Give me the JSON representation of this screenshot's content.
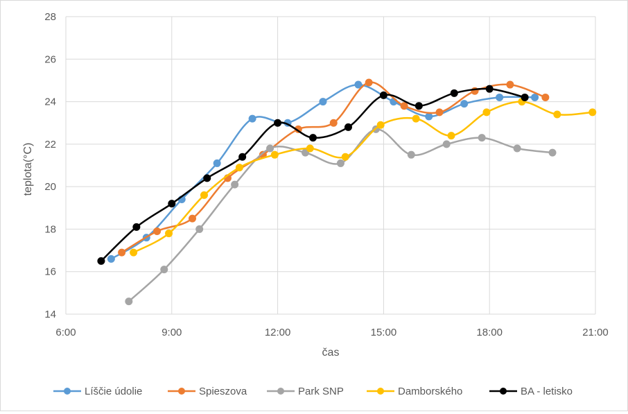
{
  "chart_data": {
    "type": "line",
    "title": "",
    "xlabel": "čas",
    "ylabel": "teplota(°C)",
    "xlim": [
      "6:00",
      "21:00"
    ],
    "ylim": [
      14,
      28
    ],
    "x_ticks": [
      "6:00",
      "9:00",
      "12:00",
      "15:00",
      "18:00",
      "21:00"
    ],
    "y_ticks": [
      "14",
      "16",
      "18",
      "20",
      "22",
      "24",
      "26",
      "28"
    ],
    "grid": "horizontal",
    "legend_position": "bottom",
    "series": [
      {
        "name": "Líščie údolie",
        "color": "#5b9bd5",
        "points": [
          [
            "7:17",
            16.6
          ],
          [
            "8:17",
            17.6
          ],
          [
            "9:17",
            19.4
          ],
          [
            "10:17",
            21.1
          ],
          [
            "11:17",
            23.2
          ],
          [
            "12:17",
            23.0
          ],
          [
            "13:17",
            24.0
          ],
          [
            "14:17",
            24.8
          ],
          [
            "15:17",
            24.0
          ],
          [
            "16:17",
            23.3
          ],
          [
            "17:17",
            23.9
          ],
          [
            "18:17",
            24.2
          ],
          [
            "19:17",
            24.2
          ]
        ]
      },
      {
        "name": "Spieszova",
        "color": "#ed7d31",
        "points": [
          [
            "7:35",
            16.9
          ],
          [
            "8:35",
            17.9
          ],
          [
            "9:35",
            18.5
          ],
          [
            "10:35",
            20.4
          ],
          [
            "11:35",
            21.5
          ],
          [
            "12:35",
            22.7
          ],
          [
            "13:35",
            23.0
          ],
          [
            "14:35",
            24.9
          ],
          [
            "15:35",
            23.8
          ],
          [
            "16:35",
            23.5
          ],
          [
            "17:35",
            24.5
          ],
          [
            "18:35",
            24.8
          ],
          [
            "19:35",
            24.2
          ]
        ]
      },
      {
        "name": "Park SNP",
        "color": "#a5a5a5",
        "points": [
          [
            "7:47",
            14.6
          ],
          [
            "8:47",
            16.1
          ],
          [
            "9:47",
            18.0
          ],
          [
            "10:47",
            20.1
          ],
          [
            "11:47",
            21.8
          ],
          [
            "12:47",
            21.6
          ],
          [
            "13:47",
            21.1
          ],
          [
            "14:47",
            22.7
          ],
          [
            "15:47",
            21.5
          ],
          [
            "16:47",
            22.0
          ],
          [
            "17:47",
            22.3
          ],
          [
            "18:47",
            21.8
          ],
          [
            "19:47",
            21.6
          ]
        ]
      },
      {
        "name": "Damborského",
        "color": "#ffc000",
        "points": [
          [
            "7:55",
            16.9
          ],
          [
            "8:55",
            17.8
          ],
          [
            "9:55",
            19.6
          ],
          [
            "10:55",
            20.9
          ],
          [
            "11:55",
            21.5
          ],
          [
            "12:55",
            21.8
          ],
          [
            "13:55",
            21.4
          ],
          [
            "14:55",
            22.9
          ],
          [
            "15:55",
            23.2
          ],
          [
            "16:55",
            22.4
          ],
          [
            "17:55",
            23.5
          ],
          [
            "18:55",
            24.0
          ],
          [
            "19:55",
            23.4
          ],
          [
            "20:55",
            23.5
          ]
        ]
      },
      {
        "name": "BA - letisko",
        "color": "#000000",
        "points": [
          [
            "7:00",
            16.5
          ],
          [
            "8:00",
            18.1
          ],
          [
            "9:00",
            19.2
          ],
          [
            "10:00",
            20.4
          ],
          [
            "11:00",
            21.4
          ],
          [
            "12:00",
            23.0
          ],
          [
            "13:00",
            22.3
          ],
          [
            "14:00",
            22.8
          ],
          [
            "15:00",
            24.3
          ],
          [
            "16:00",
            23.8
          ],
          [
            "17:00",
            24.4
          ],
          [
            "18:00",
            24.6
          ],
          [
            "19:00",
            24.2
          ]
        ]
      }
    ]
  }
}
